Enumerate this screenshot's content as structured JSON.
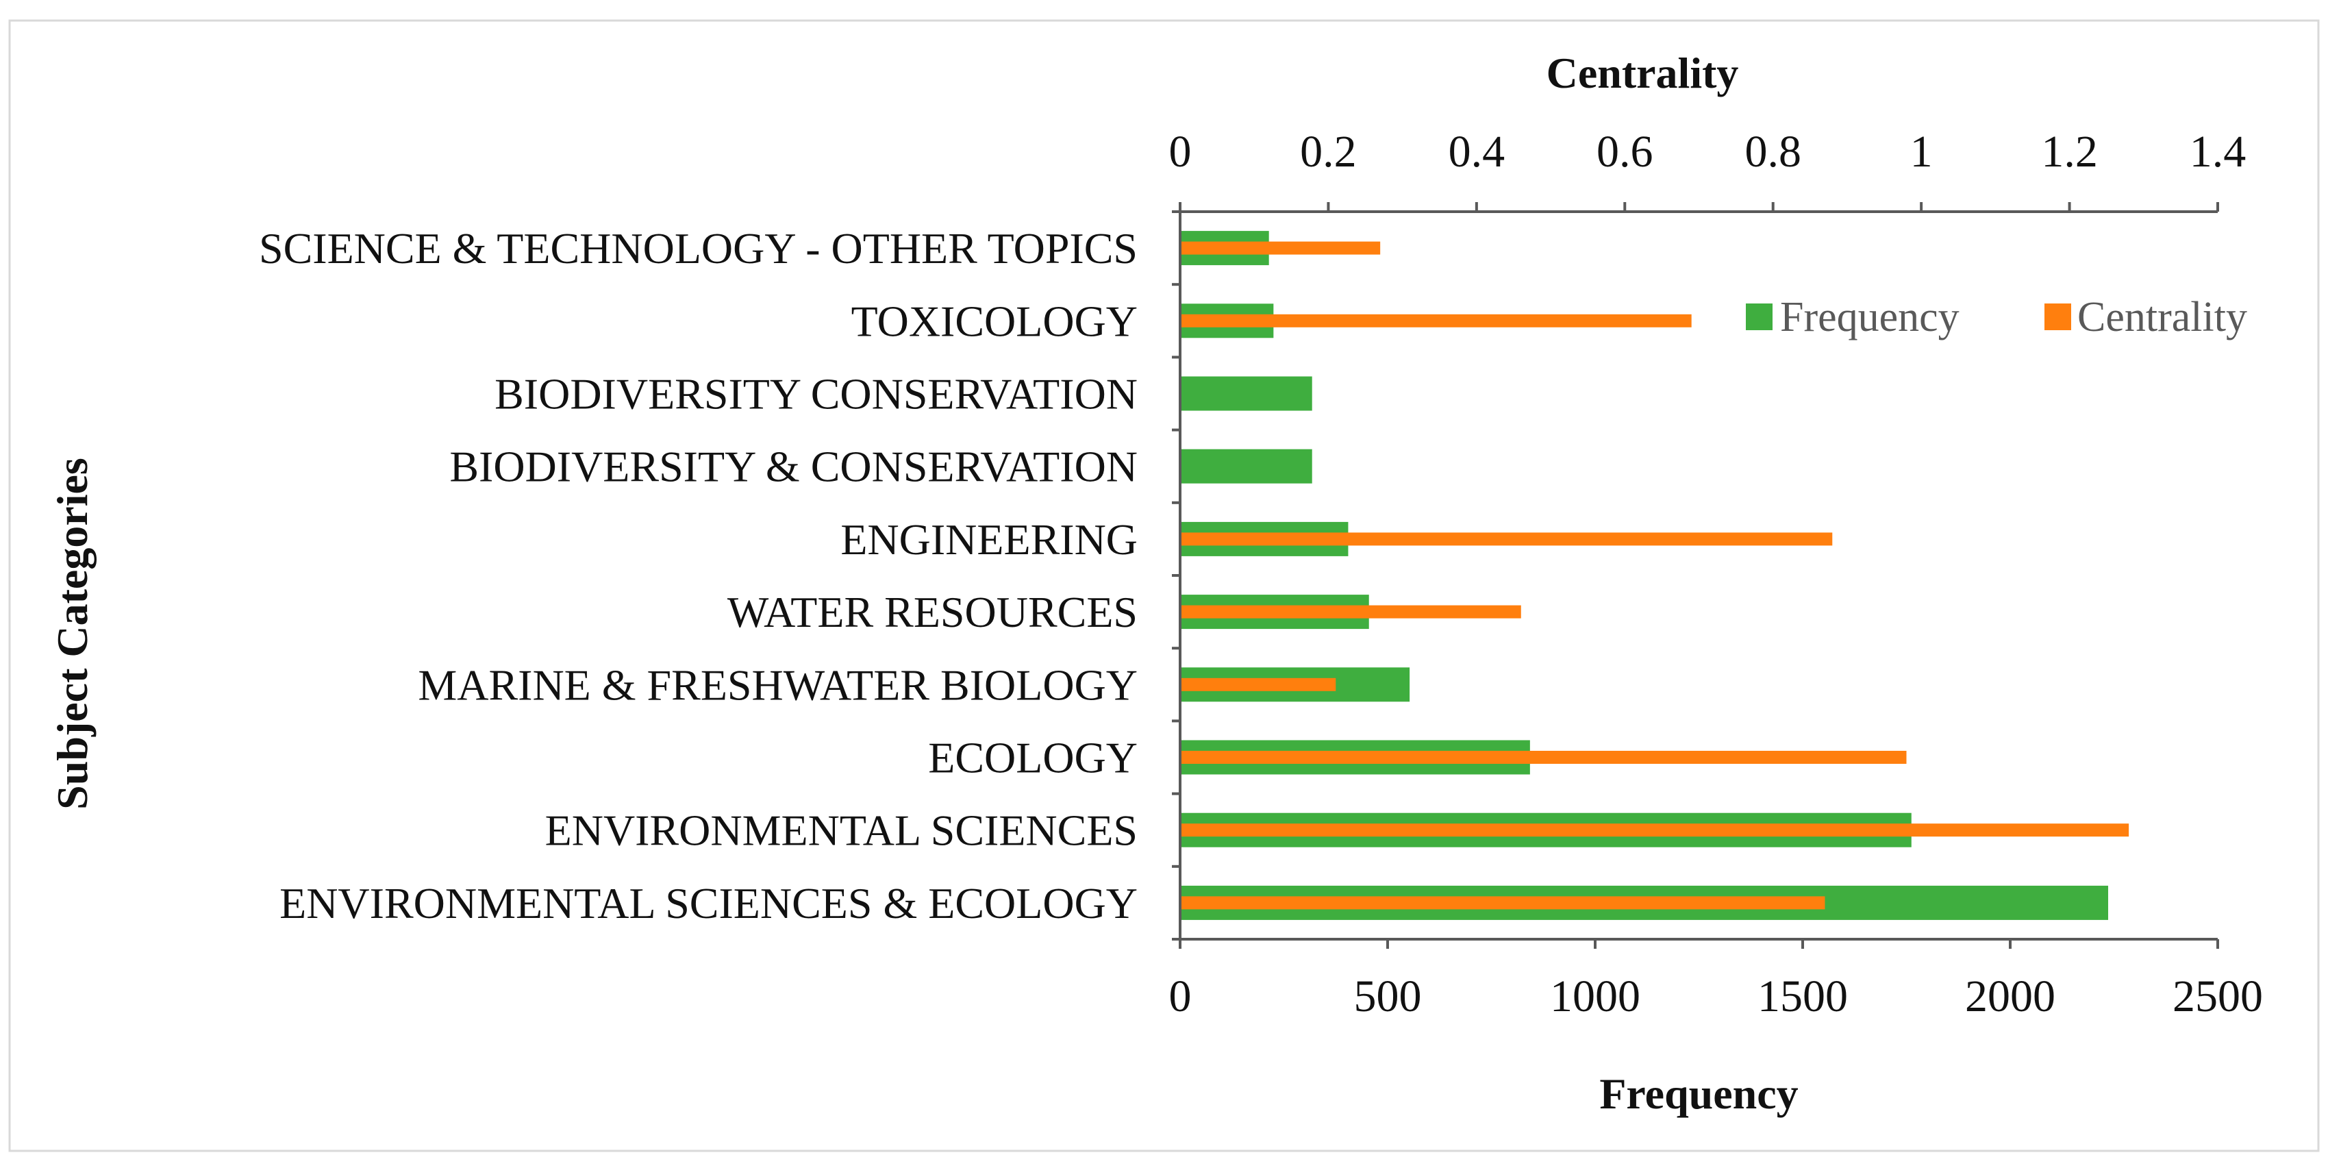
{
  "chart_data": {
    "type": "bar",
    "orientation": "horizontal",
    "categories": [
      "SCIENCE & TECHNOLOGY - OTHER TOPICS",
      "TOXICOLOGY",
      "BIODIVERSITY CONSERVATION",
      "BIODIVERSITY & CONSERVATION",
      "ENGINEERING",
      "WATER RESOURCES",
      "MARINE & FRESHWATER BIOLOGY",
      "ECOLOGY",
      "ENVIRONMENTAL SCIENCES",
      "ENVIRONMENTAL SCIENCES & ECOLOGY"
    ],
    "series": [
      {
        "name": "Frequency",
        "axis": "bottom",
        "color": "#3fae3f",
        "values": [
          214,
          225,
          318,
          318,
          405,
          455,
          553,
          843,
          1762,
          2236
        ]
      },
      {
        "name": "Centrality",
        "axis": "top",
        "color": "#ff7f0e",
        "values": [
          0.27,
          0.69,
          0,
          0,
          0.88,
          0.46,
          0.21,
          0.98,
          1.28,
          0.87
        ]
      }
    ],
    "ylabel": "Subject Categories",
    "x_bottom": {
      "label": "Frequency",
      "range": [
        0,
        2500
      ],
      "ticks": [
        0,
        500,
        1000,
        1500,
        2000,
        2500
      ],
      "tick_labels": [
        "0",
        "500",
        "1000",
        "1500",
        "2000",
        "2500"
      ]
    },
    "x_top": {
      "label": "Centrality",
      "range": [
        0,
        1.4
      ],
      "ticks": [
        0,
        0.2,
        0.4,
        0.6,
        0.8,
        1.0,
        1.2,
        1.4
      ],
      "tick_labels": [
        "0",
        "0.2",
        "0.4",
        "0.6",
        "0.8",
        "1",
        "1.2",
        "1.4"
      ]
    },
    "legend": {
      "position": "top-right",
      "entries": [
        "Frequency",
        "Centrality"
      ]
    },
    "grid": false
  }
}
